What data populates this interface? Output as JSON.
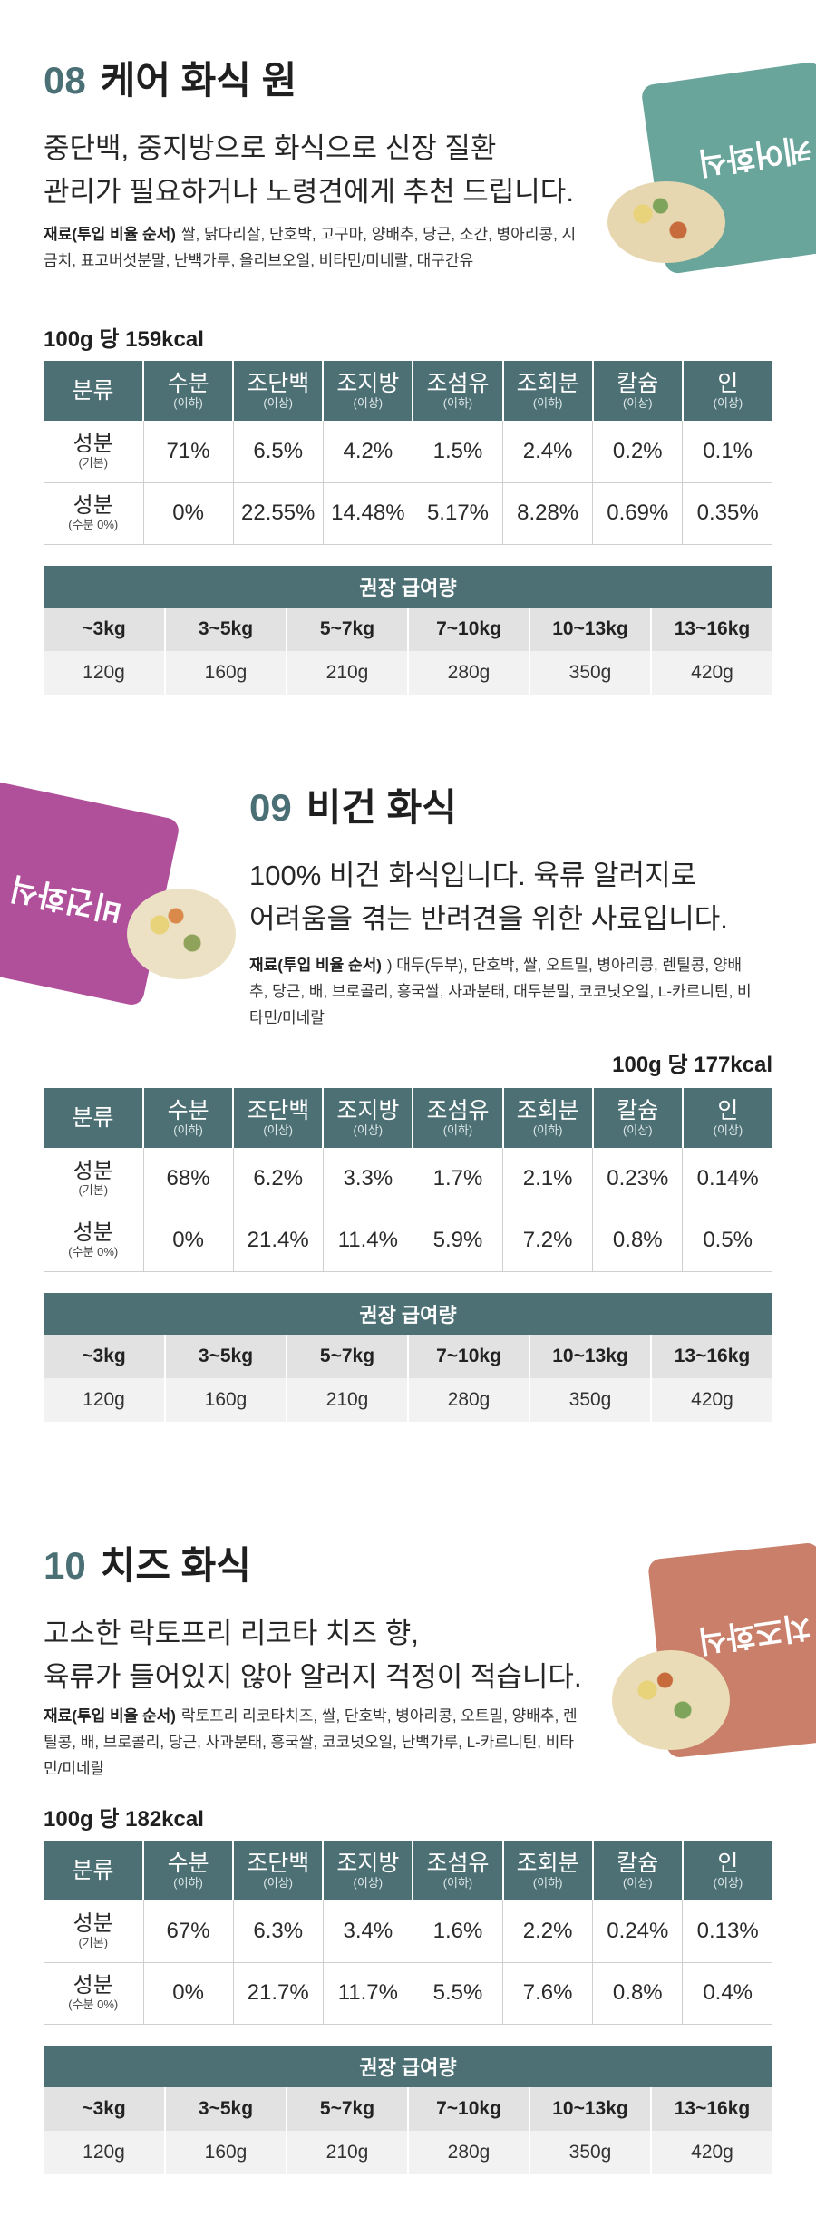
{
  "nut_headers": [
    {
      "h": "분류",
      "s": ""
    },
    {
      "h": "수분",
      "s": "(이하)"
    },
    {
      "h": "조단백",
      "s": "(이상)"
    },
    {
      "h": "조지방",
      "s": "(이상)"
    },
    {
      "h": "조섬유",
      "s": "(이하)"
    },
    {
      "h": "조회분",
      "s": "(이하)"
    },
    {
      "h": "칼슘",
      "s": "(이상)"
    },
    {
      "h": "인",
      "s": "(이상)"
    }
  ],
  "row_labels": [
    {
      "h": "성분",
      "s": "(기본)"
    },
    {
      "h": "성분",
      "s": "(수분 0%)"
    }
  ],
  "feeding_caption": "권장 급여량",
  "weights": [
    "~3kg",
    "3~5kg",
    "5~7kg",
    "7~10kg",
    "10~13kg",
    "13~16kg"
  ],
  "amounts": [
    "120g",
    "160g",
    "210g",
    "280g",
    "350g",
    "420g"
  ],
  "products": [
    {
      "number": "08",
      "name": "케어 화식 원",
      "desc": [
        "중단백, 중지방으로 화식으로 신장 질환",
        "관리가 필요하거나 노령견에게 추천 드립니다."
      ],
      "ingredients_label": "재료(투입 비율 순서)",
      "ingredients": "쌀, 닭다리살, 단호박, 고구마, 양배추, 당근, 소간, 병아리콩, 시금치, 표고버섯분말, 난백가루, 올리브오일, 비타민/미네랄, 대구간유",
      "kcal": "100g 당 159kcal",
      "row1": [
        "71%",
        "6.5%",
        "4.2%",
        "1.5%",
        "2.4%",
        "0.2%",
        "0.1%"
      ],
      "row2": [
        "0%",
        "22.55%",
        "14.48%",
        "5.17%",
        "8.28%",
        "0.69%",
        "0.35%"
      ],
      "bag_label": "케어화식",
      "bag_color": "#6aa59c"
    },
    {
      "number": "09",
      "name": "비건 화식",
      "desc": [
        "100% 비건 화식입니다. 육류 알러지로",
        "어려움을 겪는 반려견을 위한 사료입니다."
      ],
      "ingredients_label": "재료(투입 비율 순서)",
      "ingredients": ") 대두(두부), 단호박, 쌀, 오트밀, 병아리콩, 렌틸콩, 양배추, 당근, 배, 브로콜리, 흥국쌀, 사과분태, 대두분말, 코코넛오일, L-카르니틴, 비타민/미네랄",
      "kcal": "100g 당 177kcal",
      "row1": [
        "68%",
        "6.2%",
        "3.3%",
        "1.7%",
        "2.1%",
        "0.23%",
        "0.14%"
      ],
      "row2": [
        "0%",
        "21.4%",
        "11.4%",
        "5.9%",
        "7.2%",
        "0.8%",
        "0.5%"
      ],
      "bag_label": "비건화식",
      "bag_color": "#b04f9a"
    },
    {
      "number": "10",
      "name": "치즈 화식",
      "desc": [
        "고소한 락토프리 리코타 치즈 향,",
        "육류가 들어있지 않아 알러지 걱정이 적습니다."
      ],
      "ingredients_label": "재료(투입 비율 순서)",
      "ingredients": "락토프리 리코타치즈, 쌀, 단호박, 병아리콩, 오트밀, 양배추, 렌틸콩, 배, 브로콜리, 당근, 사과분태, 흥국쌀, 코코넛오일, 난백가루, L-카르니틴, 비타민/미네랄",
      "kcal": "100g 당 182kcal",
      "row1": [
        "67%",
        "6.3%",
        "3.4%",
        "1.6%",
        "2.2%",
        "0.24%",
        "0.13%"
      ],
      "row2": [
        "0%",
        "21.7%",
        "11.7%",
        "5.5%",
        "7.6%",
        "0.8%",
        "0.4%"
      ],
      "bag_label": "치즈화식",
      "bag_color": "#c97f6a"
    }
  ]
}
